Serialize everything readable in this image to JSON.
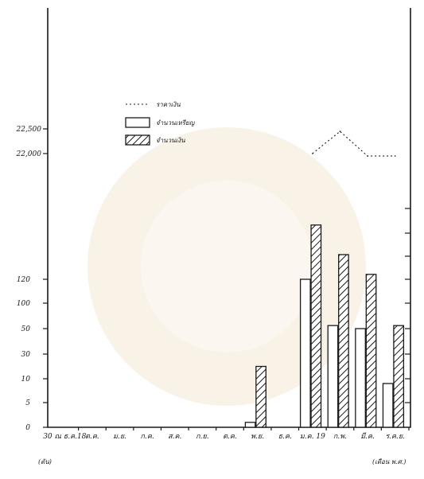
{
  "chart_data": {
    "type": "bar",
    "categories": [
      "30 ณ ธ.ค.18",
      "ต.ค.",
      "ม.ย.",
      "ก.ค.",
      "ส.ค.",
      "ก.ย.",
      "ต.ค.",
      "พ.ย.",
      "ธ.ค.",
      "ม.ค. 19",
      "ก.พ.",
      "มี.ค.",
      "ร.ค.ย."
    ],
    "x_unit_label": "(เดือน พ.ศ.)",
    "y_unit_label": "(ตัน)",
    "y_ticks_lower": [
      "0",
      "5",
      "10",
      "30",
      "50",
      "100",
      "120"
    ],
    "y_ticks_upper": [
      "22,000",
      "22,500"
    ],
    "series": [
      {
        "name": "จำนวนเหรียญ",
        "style": "plain",
        "values": [
          null,
          null,
          null,
          null,
          null,
          null,
          null,
          1,
          null,
          120,
          56,
          50,
          9
        ]
      },
      {
        "name": "จำนวนเงิน",
        "style": "hatched",
        "values": [
          null,
          null,
          null,
          null,
          null,
          null,
          null,
          20,
          null,
          340,
          220,
          140,
          56
        ]
      },
      {
        "name": "ราคาเงิน",
        "style": "dotted-line",
        "values": [
          null,
          null,
          null,
          null,
          null,
          null,
          null,
          null,
          null,
          22000,
          22450,
          21950,
          21950
        ]
      }
    ],
    "legend_position": "upper-left",
    "grid": false
  }
}
